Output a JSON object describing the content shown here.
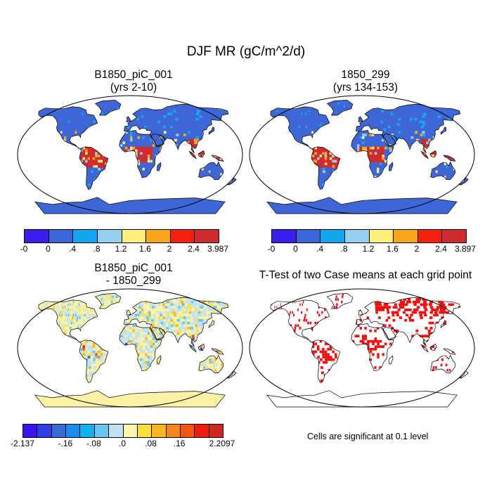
{
  "title": "DJF MR (gC/m^2/d)",
  "panels": [
    {
      "title_line1": "B1850_piC_001",
      "title_line2": "(yrs 2-10)"
    },
    {
      "title_line1": "1850_299",
      "title_line2": "(yrs 134-153)"
    },
    {
      "title_line1": "B1850_piC_001",
      "title_line2": "- 1850_299"
    },
    {
      "title_line1": "T-Test of two Case means at each grid point",
      "title_line2": ""
    }
  ],
  "colorbars": {
    "top_left": {
      "labels": [
        "-0",
        "0",
        ".4",
        ".8",
        "1.2",
        "1.6",
        "2",
        "2.4",
        "3.987"
      ],
      "colors": [
        "#3a1ef0",
        "#3a66d8",
        "#14a7f0",
        "#97cdef",
        "#fdf07a",
        "#f9a61a",
        "#f4200e",
        "#cd2b2e"
      ]
    },
    "top_right": {
      "labels": [
        "-0",
        "0",
        ".4",
        ".8",
        "1.2",
        "1.6",
        "2",
        "2.4",
        "3.897"
      ],
      "colors": [
        "#3a1ef0",
        "#3a66d8",
        "#14a7f0",
        "#97cdef",
        "#fdf07a",
        "#f9a61a",
        "#f4200e",
        "#cd2b2e"
      ]
    },
    "bottom_left": {
      "labels": [
        "-2.137",
        "-.16",
        "-.08",
        ".0",
        ".08",
        ".16",
        "2.2097"
      ],
      "colors": [
        "#3b12f0",
        "#2e3ee6",
        "#3a6ad6",
        "#1a8ef0",
        "#14b0f0",
        "#6cc4f2",
        "#bfe3f5",
        "#fdf7ae",
        "#fde03c",
        "#fbb520",
        "#f7861a",
        "#f5550f",
        "#ef1b0c",
        "#cf2525"
      ]
    }
  },
  "significance_note": "Cells are significant at 0.1 level",
  "colors": {
    "land_base_abs": "#3f66d6",
    "land_base_diff": "#fbf2a4",
    "significant": "#f01010"
  }
}
